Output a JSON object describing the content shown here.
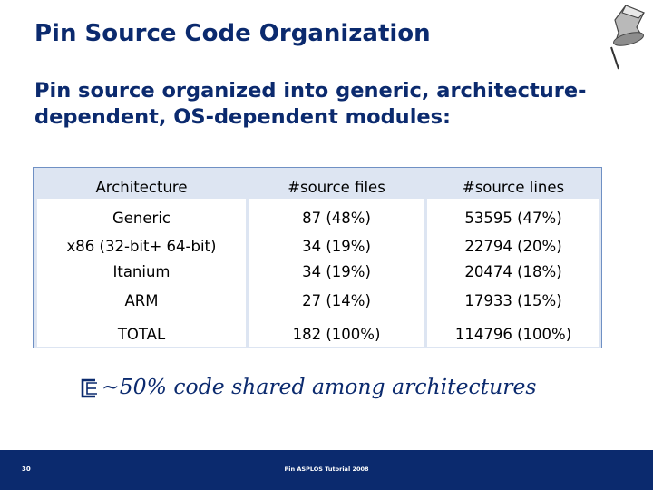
{
  "slide": {
    "title": "Pin Source Code Organization",
    "subtitle": "Pin source organized into generic, architecture-dependent, OS-dependent modules:",
    "note": "~50% code shared among architectures",
    "footer_center": "Pin ASPLOS Tutorial 2008",
    "page_number": "30"
  },
  "table": {
    "headers": [
      "Architecture",
      "#source files",
      "#source lines"
    ],
    "rows": [
      [
        "Generic",
        "87 (48%)",
        "53595 (47%)"
      ],
      [
        "x86 (32-bit+ 64-bit)",
        "34 (19%)",
        "22794 (20%)"
      ],
      [
        "Itanium",
        "34 (19%)",
        "20474 (18%)"
      ],
      [
        "ARM",
        "27 (14%)",
        "17933 (15%)"
      ],
      [
        "TOTAL",
        "182 (100%)",
        "114796 (100%)"
      ]
    ]
  },
  "colors": {
    "title": "#0b2a6e",
    "table_header_bg": "#dde5f2",
    "table_border": "#6f90c4",
    "footer_bar": "#0b2a6e"
  },
  "icons": {
    "decoration": "push-pin-icon",
    "bullet": "arrow-bullet-icon"
  }
}
